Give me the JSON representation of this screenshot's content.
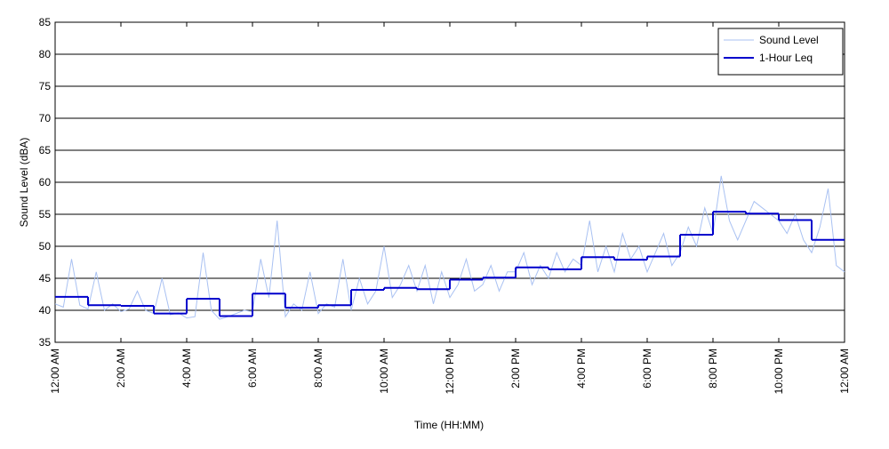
{
  "chart_data": {
    "type": "line",
    "xlabel": "Time (HH:MM)",
    "ylabel": "Sound Level (dBA)",
    "xlim": [
      0,
      24
    ],
    "ylim": [
      35,
      85
    ],
    "yticks": [
      35,
      40,
      45,
      50,
      55,
      60,
      65,
      70,
      75,
      80,
      85
    ],
    "xticks": [
      {
        "value": 0,
        "label": "12:00 AM"
      },
      {
        "value": 2,
        "label": "2:00 AM"
      },
      {
        "value": 4,
        "label": "4:00 AM"
      },
      {
        "value": 6,
        "label": "6:00 AM"
      },
      {
        "value": 8,
        "label": "8:00 AM"
      },
      {
        "value": 10,
        "label": "10:00 AM"
      },
      {
        "value": 12,
        "label": "12:00 PM"
      },
      {
        "value": 14,
        "label": "2:00 PM"
      },
      {
        "value": 16,
        "label": "4:00 PM"
      },
      {
        "value": 18,
        "label": "6:00 PM"
      },
      {
        "value": 20,
        "label": "8:00 PM"
      },
      {
        "value": 22,
        "label": "10:00 PM"
      },
      {
        "value": 24,
        "label": "12:00 AM"
      }
    ],
    "grid": true,
    "legend": "upper right",
    "series": [
      {
        "name": "Sound Level",
        "color": "#a9c1f2",
        "style": "line",
        "x": [
          0,
          0.25,
          0.5,
          0.75,
          1,
          1.25,
          1.5,
          1.75,
          2,
          2.25,
          2.5,
          2.75,
          3,
          3.25,
          3.5,
          3.75,
          4,
          4.25,
          4.5,
          4.75,
          5,
          5.25,
          5.5,
          5.75,
          6,
          6.25,
          6.5,
          6.75,
          7,
          7.25,
          7.5,
          7.75,
          8,
          8.25,
          8.5,
          8.75,
          9,
          9.25,
          9.5,
          9.75,
          10,
          10.25,
          10.5,
          10.75,
          11,
          11.25,
          11.5,
          11.75,
          12,
          12.25,
          12.5,
          12.75,
          13,
          13.25,
          13.5,
          13.75,
          14,
          14.25,
          14.5,
          14.75,
          15,
          15.25,
          15.5,
          15.75,
          16,
          16.25,
          16.5,
          16.75,
          17,
          17.25,
          17.5,
          17.75,
          18,
          18.25,
          18.5,
          18.75,
          19,
          19.25,
          19.5,
          19.75,
          20,
          20.25,
          20.5,
          20.75,
          21,
          21.25,
          21.5,
          21.75,
          22,
          22.25,
          22.5,
          22.75,
          23,
          23.25,
          23.5,
          23.75,
          24
        ],
        "values": [
          41,
          40.5,
          48,
          40.8,
          40.2,
          46,
          40,
          41,
          39.8,
          40.2,
          43,
          40,
          39.5,
          45,
          39.3,
          39.6,
          38.8,
          39,
          49,
          40,
          38.6,
          39,
          39.5,
          40,
          39.8,
          48,
          42,
          54,
          39,
          41,
          40,
          46,
          39.5,
          41,
          40.5,
          48,
          40,
          45,
          41,
          43,
          50,
          42,
          44,
          47,
          43,
          47,
          41,
          46,
          42,
          44,
          48,
          43,
          44,
          47,
          43,
          46,
          46,
          49,
          44,
          47,
          45,
          49,
          46,
          48,
          47,
          54,
          46,
          50,
          46,
          52,
          48,
          50,
          46,
          49,
          52,
          47,
          49,
          53,
          50,
          56,
          52,
          61,
          54,
          51,
          54,
          57,
          56,
          55,
          54,
          52,
          55,
          51,
          49,
          53,
          59,
          47,
          46
        ]
      },
      {
        "name": "1-Hour Leq",
        "color": "#0000cc",
        "style": "steps",
        "x": [
          0,
          1,
          2,
          3,
          4,
          5,
          6,
          7,
          8,
          9,
          10,
          11,
          12,
          13,
          14,
          15,
          16,
          17,
          18,
          19,
          20,
          21,
          22,
          23
        ],
        "values": [
          42.1,
          40.8,
          40.7,
          39.5,
          41.8,
          39.1,
          42.6,
          40.4,
          40.8,
          43.2,
          43.5,
          43.3,
          44.8,
          45.1,
          46.7,
          46.4,
          48.3,
          47.9,
          48.4,
          51.8,
          55.4,
          55.1,
          54.1,
          51.0
        ]
      }
    ]
  }
}
